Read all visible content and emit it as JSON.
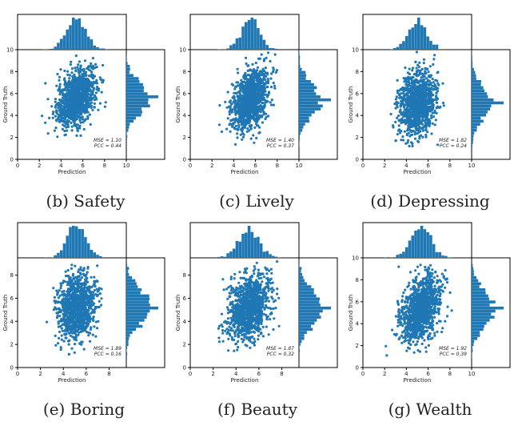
{
  "colors": {
    "points": "#1f77b4",
    "frame": "#000000",
    "background": "#ffffff"
  },
  "chart_data": [
    {
      "type": "scatter",
      "caption": "(b) Safety",
      "xlabel": "Prediction",
      "ylabel": "Ground Truth",
      "xlim": [
        0,
        10
      ],
      "ylim": [
        0,
        10
      ],
      "xticks": [
        "0",
        "2",
        "4",
        "6",
        "8",
        "10"
      ],
      "yticks": [
        "0",
        "2",
        "4",
        "6",
        "8",
        "10"
      ],
      "mse_label": "MSE = 1.10",
      "pcc_label": "PCC = 0.44",
      "mean_x": 5.4,
      "sd_x": 0.9,
      "mean_y": 5.6,
      "sd_y": 1.35,
      "pcc": 0.44,
      "x_range": [
        2.0,
        8.3
      ],
      "y_range": [
        1.6,
        9.8
      ],
      "y_spike": 5.6
    },
    {
      "type": "scatter",
      "caption": "(c) Lively",
      "xlabel": "Prediction",
      "ylabel": "Ground Truth",
      "xlim": [
        0,
        10
      ],
      "ylim": [
        0,
        10
      ],
      "xticks": [
        "0",
        "2",
        "4",
        "6",
        "8",
        "10"
      ],
      "yticks": [
        "0",
        "2",
        "4",
        "6",
        "8",
        "10"
      ],
      "mse_label": "MSE = 1.40",
      "pcc_label": "PCC = 0.37",
      "mean_x": 5.5,
      "sd_x": 0.85,
      "mean_y": 5.4,
      "sd_y": 1.4,
      "pcc": 0.37,
      "x_range": [
        2.0,
        8.0
      ],
      "y_range": [
        1.2,
        9.8
      ],
      "y_spike": 5.4
    },
    {
      "type": "scatter",
      "caption": "(d) Depressing",
      "xlabel": "Prediction",
      "ylabel": "Ground Truth",
      "xlim": [
        0,
        10
      ],
      "ylim": [
        0,
        10
      ],
      "xticks": [
        "0",
        "2",
        "4",
        "6",
        "8",
        "10"
      ],
      "yticks": [
        "0",
        "2",
        "4",
        "6",
        "8",
        "10"
      ],
      "mse_label": "MSE = 1.82",
      "pcc_label": "PCC = 0.24",
      "mean_x": 5.0,
      "sd_x": 0.85,
      "mean_y": 5.1,
      "sd_y": 1.5,
      "pcc": 0.24,
      "x_range": [
        2.0,
        7.8
      ],
      "y_range": [
        1.2,
        9.8
      ],
      "y_spike": 5.2
    },
    {
      "type": "scatter",
      "caption": "(e) Boring",
      "xlabel": "Prediction",
      "ylabel": "Ground Truth",
      "xlim": [
        0,
        9.5
      ],
      "ylim": [
        0,
        9.5
      ],
      "xticks": [
        "0",
        "2",
        "4",
        "6",
        "8"
      ],
      "yticks": [
        "0",
        "2",
        "4",
        "6",
        "8"
      ],
      "mse_label": "MSE = 1.89",
      "pcc_label": "PCC = 0.16",
      "mean_x": 5.1,
      "sd_x": 0.8,
      "mean_y": 5.2,
      "sd_y": 1.45,
      "pcc": 0.16,
      "x_range": [
        1.4,
        7.8
      ],
      "y_range": [
        1.0,
        9.0
      ],
      "y_spike": 5.2
    },
    {
      "type": "scatter",
      "caption": "(f) Beauty",
      "xlabel": "Prediction",
      "ylabel": "Ground Truth",
      "xlim": [
        0,
        9.5
      ],
      "ylim": [
        0,
        9.5
      ],
      "xticks": [
        "0",
        "2",
        "4",
        "6",
        "8"
      ],
      "yticks": [
        "0",
        "2",
        "4",
        "6",
        "8"
      ],
      "mse_label": "MSE = 1.87",
      "pcc_label": "PCC = 0.32",
      "mean_x": 5.1,
      "sd_x": 0.9,
      "mean_y": 5.2,
      "sd_y": 1.5,
      "pcc": 0.32,
      "x_range": [
        1.8,
        8.3
      ],
      "y_range": [
        1.0,
        9.2
      ],
      "y_spike": 5.2
    },
    {
      "type": "scatter",
      "caption": "(g) Wealth",
      "xlabel": "Prediction",
      "ylabel": "Ground Truth",
      "xlim": [
        0,
        10
      ],
      "ylim": [
        0,
        10
      ],
      "xticks": [
        "0",
        "2",
        "4",
        "6",
        "8",
        "10"
      ],
      "yticks": [
        "0",
        "2",
        "4",
        "6",
        "8",
        "10"
      ],
      "mse_label": "MSE = 1.92",
      "pcc_label": "PCC = 0.39",
      "mean_x": 5.3,
      "sd_x": 0.9,
      "mean_y": 5.4,
      "sd_y": 1.55,
      "pcc": 0.39,
      "x_range": [
        2.0,
        8.5
      ],
      "y_range": [
        1.0,
        9.8
      ],
      "y_spike": 5.4
    }
  ]
}
